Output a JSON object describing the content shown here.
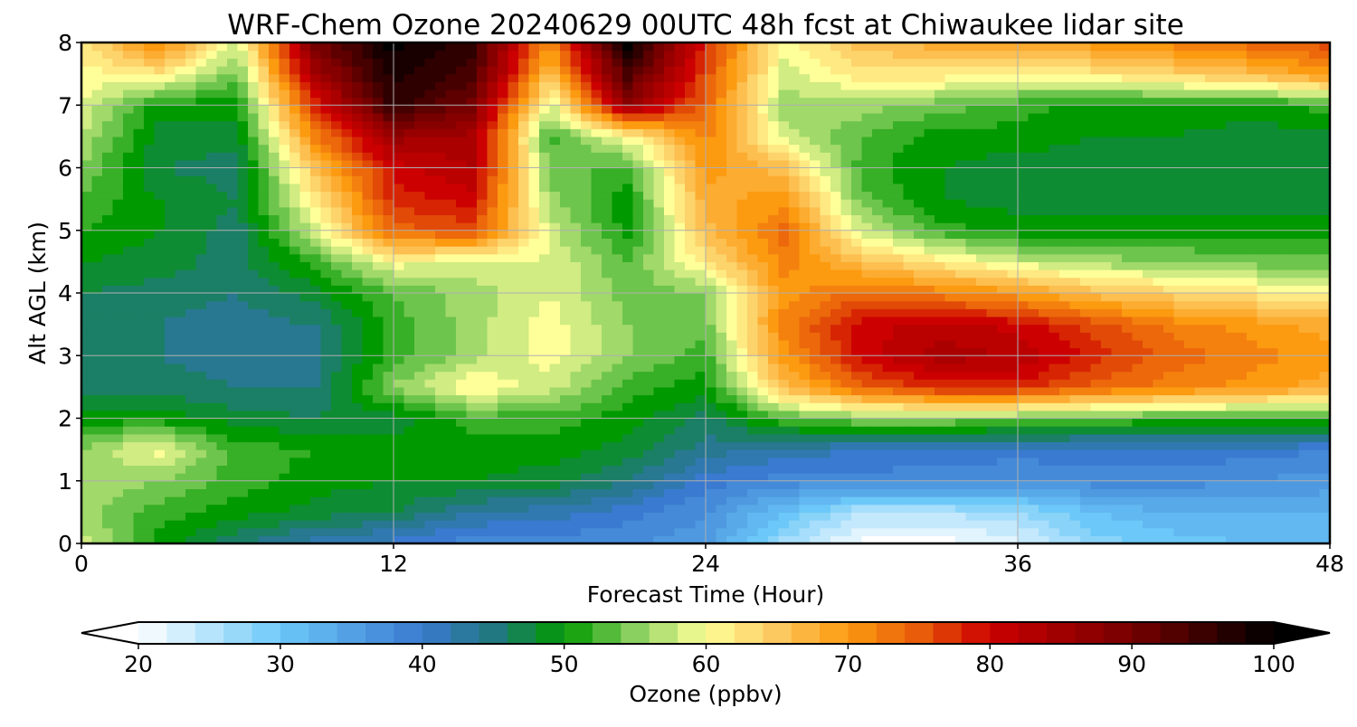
{
  "chart_data": {
    "type": "heatmap",
    "title": "WRF-Chem Ozone  20240629 00UTC 48h fcst at Chiwaukee lidar site",
    "xlabel": "Forecast Time (Hour)",
    "ylabel": "Alt AGL (km)",
    "xlim": [
      0,
      48
    ],
    "ylim": [
      0,
      8
    ],
    "x_ticks": [
      0,
      12,
      24,
      36,
      48
    ],
    "y_ticks": [
      0,
      1,
      2,
      3,
      4,
      5,
      6,
      7,
      8
    ],
    "grid": true,
    "x": [
      0,
      3,
      6,
      9,
      12,
      15,
      18,
      21,
      24,
      27,
      30,
      33,
      36,
      39,
      42,
      45,
      48
    ],
    "y": [
      0,
      0.5,
      1,
      1.5,
      2,
      2.5,
      3,
      3.5,
      4,
      4.5,
      5,
      5.5,
      6,
      6.5,
      7,
      7.5,
      8
    ],
    "z_rows": [
      [
        58,
        50,
        45,
        42,
        40,
        38,
        38,
        37,
        36,
        26,
        20,
        20,
        22,
        28,
        30,
        31,
        31
      ],
      [
        56,
        52,
        50,
        48,
        47,
        43,
        42,
        40,
        37,
        31,
        25,
        25,
        27,
        31,
        33,
        33,
        33
      ],
      [
        57,
        55,
        52,
        50,
        49,
        49,
        48,
        45,
        40,
        38,
        38,
        38,
        37,
        38,
        38,
        37,
        36
      ],
      [
        55,
        60,
        52,
        51,
        50,
        50,
        50,
        48,
        44,
        42,
        41,
        40,
        40,
        40,
        40,
        40,
        39
      ],
      [
        50,
        50,
        48,
        47,
        48,
        52,
        52,
        50,
        46,
        53,
        55,
        55,
        54,
        53,
        52,
        52,
        52
      ],
      [
        46,
        46,
        45,
        45,
        55,
        61,
        58,
        52,
        50,
        66,
        74,
        78,
        78,
        74,
        72,
        70,
        68
      ],
      [
        45,
        45,
        44,
        44,
        52,
        56,
        60,
        55,
        52,
        70,
        80,
        84,
        83,
        78,
        74,
        72,
        70
      ],
      [
        45,
        45,
        44,
        45,
        52,
        56,
        60,
        55,
        54,
        72,
        80,
        82,
        80,
        76,
        72,
        70,
        68
      ],
      [
        47,
        46,
        45,
        48,
        53,
        56,
        59,
        54,
        55,
        70,
        74,
        72,
        70,
        66,
        64,
        62,
        61
      ],
      [
        49,
        48,
        46,
        52,
        60,
        58,
        59,
        53,
        62,
        72,
        66,
        62,
        58,
        56,
        55,
        54,
        54
      ],
      [
        51,
        49,
        46,
        58,
        74,
        76,
        58,
        50,
        66,
        74,
        58,
        52,
        50,
        50,
        50,
        50,
        50
      ],
      [
        53,
        49,
        47,
        62,
        78,
        80,
        56,
        50,
        68,
        70,
        54,
        49,
        48,
        48,
        48,
        48,
        48
      ],
      [
        55,
        47,
        46,
        66,
        80,
        83,
        54,
        52,
        70,
        66,
        52,
        49,
        48,
        48,
        48,
        47,
        48
      ],
      [
        57,
        48,
        48,
        72,
        86,
        84,
        52,
        60,
        72,
        58,
        53,
        50,
        50,
        49,
        49,
        48,
        48
      ],
      [
        59,
        50,
        50,
        78,
        96,
        90,
        58,
        86,
        74,
        56,
        56,
        54,
        52,
        50,
        50,
        50,
        52
      ],
      [
        60,
        62,
        54,
        85,
        98,
        94,
        66,
        94,
        76,
        58,
        62,
        62,
        60,
        62,
        64,
        66,
        70
      ],
      [
        62,
        72,
        58,
        90,
        100,
        96,
        70,
        100,
        78,
        60,
        66,
        68,
        68,
        70,
        72,
        74,
        76
      ]
    ],
    "colorbar": {
      "label": "Ozone  (ppbv)",
      "min": 20,
      "max": 100,
      "ticks": [
        20,
        30,
        40,
        50,
        60,
        70,
        80,
        90,
        100
      ],
      "extend": "both",
      "stops": [
        {
          "v": 20,
          "c": "#ffffff"
        },
        {
          "v": 30,
          "c": "#6cc8f8"
        },
        {
          "v": 40,
          "c": "#3a7ad0"
        },
        {
          "v": 45,
          "c": "#227880"
        },
        {
          "v": 50,
          "c": "#009900"
        },
        {
          "v": 55,
          "c": "#8ad060"
        },
        {
          "v": 60,
          "c": "#ffff99"
        },
        {
          "v": 65,
          "c": "#fcc860"
        },
        {
          "v": 70,
          "c": "#fc9a10"
        },
        {
          "v": 75,
          "c": "#e85c0a"
        },
        {
          "v": 80,
          "c": "#cc0000"
        },
        {
          "v": 90,
          "c": "#760000"
        },
        {
          "v": 100,
          "c": "#000000"
        }
      ]
    }
  }
}
